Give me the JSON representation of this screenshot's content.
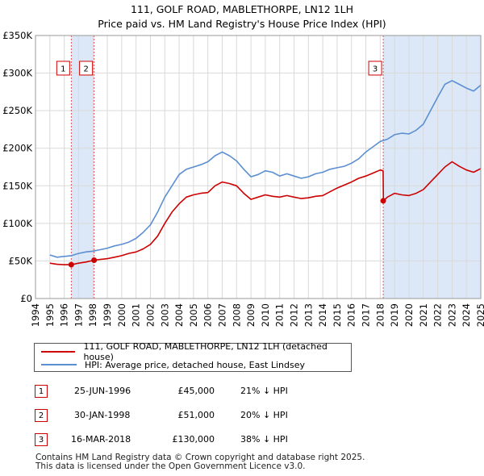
{
  "title": "111, GOLF ROAD, MABLETHORPE, LN12 1LH",
  "subtitle": "Price paid vs. HM Land Registry's House Price Index (HPI)",
  "colors": {
    "price": "#cc0000",
    "hpi": "#5b8fd1",
    "shade": "#dce8f7",
    "grid": "#d9d9d9",
    "vline": "#e05050"
  },
  "chart_data": {
    "type": "line",
    "title": "111, GOLF ROAD, MABLETHORPE, LN12 1LH",
    "xlabel": "",
    "ylabel": "",
    "xlim": [
      1994,
      2025
    ],
    "ylim": [
      0,
      350000
    ],
    "x_ticks": [
      1994,
      1995,
      1996,
      1997,
      1998,
      1999,
      2000,
      2001,
      2002,
      2003,
      2004,
      2005,
      2006,
      2007,
      2008,
      2009,
      2010,
      2011,
      2012,
      2013,
      2014,
      2015,
      2016,
      2017,
      2018,
      2019,
      2020,
      2021,
      2022,
      2023,
      2024,
      2025
    ],
    "y_ticks": [
      0,
      50000,
      100000,
      150000,
      200000,
      250000,
      300000,
      350000
    ],
    "y_tick_labels": [
      "£0",
      "£50K",
      "£100K",
      "£150K",
      "£200K",
      "£250K",
      "£300K",
      "£350K"
    ],
    "series": [
      {
        "name": "111, GOLF ROAD, MABLETHORPE, LN12 1LH (detached house)",
        "x": [
          1995.0,
          1995.5,
          1996.0,
          1996.49,
          1997.0,
          1997.5,
          1998.08,
          1998.5,
          1999.0,
          1999.5,
          2000.0,
          2000.5,
          2001.0,
          2001.5,
          2002.0,
          2002.5,
          2003.0,
          2003.5,
          2004.0,
          2004.5,
          2005.0,
          2005.5,
          2006.0,
          2006.5,
          2007.0,
          2007.5,
          2008.0,
          2008.5,
          2009.0,
          2009.5,
          2010.0,
          2010.5,
          2011.0,
          2011.5,
          2012.0,
          2012.5,
          2013.0,
          2013.5,
          2014.0,
          2014.5,
          2015.0,
          2015.5,
          2016.0,
          2016.5,
          2017.0,
          2017.5,
          2018.0,
          2018.2,
          2018.22,
          2018.5,
          2019.0,
          2019.5,
          2020.0,
          2020.5,
          2021.0,
          2021.5,
          2022.0,
          2022.5,
          2023.0,
          2023.5,
          2024.0,
          2024.5,
          2025.0
        ],
        "values": [
          47000,
          45500,
          45000,
          45000,
          47000,
          48500,
          51000,
          52000,
          53000,
          55000,
          57000,
          60000,
          62000,
          66000,
          72000,
          83000,
          100000,
          115000,
          126000,
          135000,
          138000,
          140000,
          141000,
          150000,
          155000,
          153000,
          150000,
          140000,
          132000,
          135000,
          138000,
          136000,
          135000,
          137000,
          135000,
          133000,
          134000,
          136000,
          137000,
          142000,
          147000,
          151000,
          155000,
          160000,
          163000,
          167000,
          171000,
          170000,
          130000,
          135000,
          140000,
          138000,
          137000,
          140000,
          145000,
          155000,
          165000,
          175000,
          182000,
          176000,
          171000,
          168000,
          173000
        ]
      },
      {
        "name": "HPI: Average price, detached house, East Lindsey",
        "x": [
          1995.0,
          1995.5,
          1996.0,
          1996.5,
          1997.0,
          1997.5,
          1998.0,
          1998.5,
          1999.0,
          1999.5,
          2000.0,
          2000.5,
          2001.0,
          2001.5,
          2002.0,
          2002.5,
          2003.0,
          2003.5,
          2004.0,
          2004.5,
          2005.0,
          2005.5,
          2006.0,
          2006.5,
          2007.0,
          2007.5,
          2008.0,
          2008.5,
          2009.0,
          2009.5,
          2010.0,
          2010.5,
          2011.0,
          2011.5,
          2012.0,
          2012.5,
          2013.0,
          2013.5,
          2014.0,
          2014.5,
          2015.0,
          2015.5,
          2016.0,
          2016.5,
          2017.0,
          2017.5,
          2018.0,
          2018.5,
          2019.0,
          2019.5,
          2020.0,
          2020.5,
          2021.0,
          2021.5,
          2022.0,
          2022.5,
          2023.0,
          2023.5,
          2024.0,
          2024.5,
          2025.0
        ],
        "values": [
          58000,
          55000,
          56000,
          57000,
          60000,
          62000,
          63000,
          65000,
          67000,
          70000,
          72000,
          75000,
          80000,
          88000,
          98000,
          115000,
          135000,
          150000,
          165000,
          172000,
          175000,
          178000,
          182000,
          190000,
          195000,
          190000,
          183000,
          172000,
          162000,
          165000,
          170000,
          168000,
          163000,
          166000,
          163000,
          160000,
          162000,
          166000,
          168000,
          172000,
          174000,
          176000,
          180000,
          186000,
          195000,
          202000,
          209000,
          212000,
          218000,
          220000,
          219000,
          224000,
          232000,
          250000,
          268000,
          285000,
          290000,
          285000,
          280000,
          276000,
          284000
        ]
      }
    ],
    "sales": [
      {
        "label": "1",
        "date": "25-JUN-1996",
        "x": 1996.49,
        "price": 45000,
        "price_label": "£45,000",
        "hpi_diff": "21% ↓ HPI"
      },
      {
        "label": "2",
        "date": "30-JAN-1998",
        "x": 1998.08,
        "price": 51000,
        "price_label": "£51,000",
        "hpi_diff": "20% ↓ HPI"
      },
      {
        "label": "3",
        "date": "16-MAR-2018",
        "x": 2018.21,
        "price": 130000,
        "price_label": "£130,000",
        "hpi_diff": "38% ↓ HPI"
      }
    ]
  },
  "legend": {
    "price_label": "111, GOLF ROAD, MABLETHORPE, LN12 1LH (detached house)",
    "hpi_label": "HPI: Average price, detached house, East Lindsey"
  },
  "footer": {
    "line1": "Contains HM Land Registry data © Crown copyright and database right 2025.",
    "line2": "This data is licensed under the Open Government Licence v3.0."
  }
}
